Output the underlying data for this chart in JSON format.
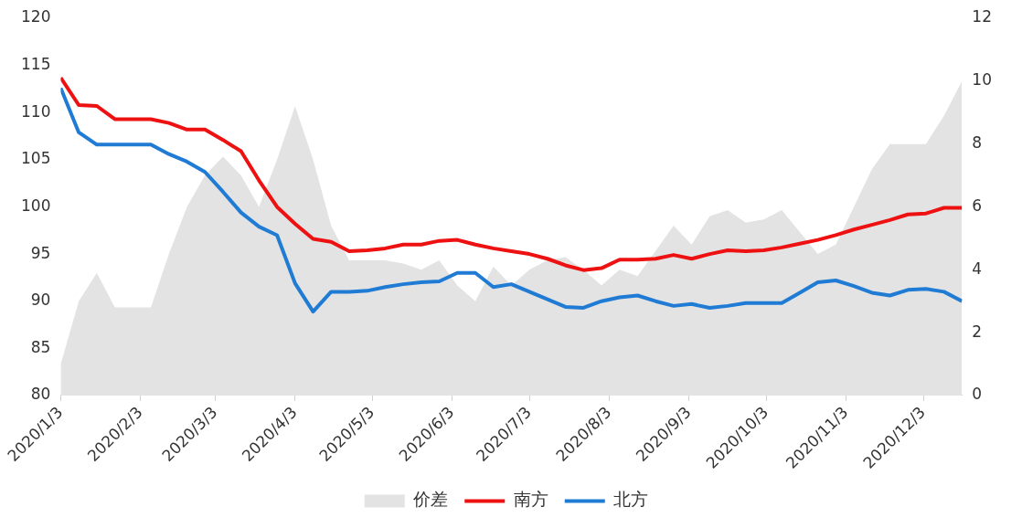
{
  "chart_data": {
    "type": "line",
    "x": [
      "2020-01-03",
      "2020-01-10",
      "2020-01-17",
      "2020-01-24",
      "2020-01-31",
      "2020-02-07",
      "2020-02-14",
      "2020-02-21",
      "2020-02-28",
      "2020-03-06",
      "2020-03-13",
      "2020-03-20",
      "2020-03-27",
      "2020-04-03",
      "2020-04-10",
      "2020-04-17",
      "2020-04-24",
      "2020-05-01",
      "2020-05-08",
      "2020-05-15",
      "2020-05-22",
      "2020-05-29",
      "2020-06-05",
      "2020-06-12",
      "2020-06-19",
      "2020-06-26",
      "2020-07-03",
      "2020-07-10",
      "2020-07-17",
      "2020-07-24",
      "2020-07-31",
      "2020-08-07",
      "2020-08-14",
      "2020-08-21",
      "2020-08-28",
      "2020-09-04",
      "2020-09-11",
      "2020-09-18",
      "2020-09-25",
      "2020-10-02",
      "2020-10-09",
      "2020-10-16",
      "2020-10-23",
      "2020-10-30",
      "2020-11-06",
      "2020-11-13",
      "2020-11-20",
      "2020-11-27",
      "2020-12-04",
      "2020-12-11",
      "2020-12-18"
    ],
    "series": [
      {
        "name": "价差",
        "type": "area",
        "axis": "y2",
        "color": "#e3e3e3",
        "values": [
          1.0,
          3.0,
          3.9,
          2.8,
          2.8,
          2.8,
          4.5,
          6.0,
          7.0,
          7.6,
          7.0,
          6.0,
          7.5,
          9.2,
          7.5,
          5.4,
          4.3,
          4.3,
          4.3,
          4.2,
          4.0,
          4.3,
          3.5,
          3.0,
          4.1,
          3.5,
          4.0,
          4.3,
          4.4,
          4.0,
          3.5,
          4.0,
          3.8,
          4.6,
          5.4,
          4.8,
          5.7,
          5.9,
          5.5,
          5.6,
          5.9,
          5.2,
          4.5,
          4.8,
          6.0,
          7.2,
          8.0,
          8.0,
          8.0,
          8.9,
          10.0
        ]
      },
      {
        "name": "南方",
        "color": "#ee1111",
        "values": [
          113.7,
          110.8,
          110.7,
          109.3,
          109.3,
          109.3,
          108.9,
          108.2,
          108.2,
          107.1,
          105.9,
          102.8,
          100.0,
          98.2,
          96.6,
          96.3,
          95.3,
          95.4,
          95.6,
          96.0,
          96.0,
          96.4,
          96.5,
          96.0,
          95.6,
          95.3,
          95.0,
          94.5,
          93.8,
          93.3,
          93.5,
          94.4,
          94.4,
          94.5,
          94.9,
          94.5,
          95.0,
          95.4,
          95.3,
          95.4,
          95.7,
          96.1,
          96.5,
          97.0,
          97.6,
          98.1,
          98.6,
          99.2,
          99.3,
          99.9,
          99.9
        ]
      },
      {
        "name": "北方",
        "color": "#1f7bd4",
        "values": [
          112.6,
          107.9,
          106.6,
          106.6,
          106.6,
          106.6,
          105.6,
          104.8,
          103.7,
          101.6,
          99.4,
          97.9,
          97.0,
          91.9,
          88.9,
          91.0,
          91.0,
          91.1,
          91.5,
          91.8,
          92.0,
          92.1,
          93.0,
          93.0,
          91.5,
          91.8,
          91.0,
          90.2,
          89.4,
          89.3,
          90.0,
          90.4,
          90.6,
          90.0,
          89.5,
          89.7,
          89.3,
          89.5,
          89.8,
          89.8,
          89.8,
          90.9,
          92.0,
          92.2,
          91.6,
          90.9,
          90.6,
          91.2,
          91.3,
          91.0,
          90.0
        ]
      }
    ],
    "xlim": [
      "2020-01-03",
      "2020-12-18"
    ],
    "xticks": [
      {
        "value": "2020-01-03",
        "label": "2020/1/3"
      },
      {
        "value": "2020-02-03",
        "label": "2020/2/3"
      },
      {
        "value": "2020-03-03",
        "label": "2020/3/3"
      },
      {
        "value": "2020-04-03",
        "label": "2020/4/3"
      },
      {
        "value": "2020-05-03",
        "label": "2020/5/3"
      },
      {
        "value": "2020-06-03",
        "label": "2020/6/3"
      },
      {
        "value": "2020-07-03",
        "label": "2020/7/3"
      },
      {
        "value": "2020-08-03",
        "label": "2020/8/3"
      },
      {
        "value": "2020-09-03",
        "label": "2020/9/3"
      },
      {
        "value": "2020-10-03",
        "label": "2020/10/3"
      },
      {
        "value": "2020-11-03",
        "label": "2020/11/3"
      },
      {
        "value": "2020-12-03",
        "label": "2020/12/3"
      }
    ],
    "ylim": [
      80,
      120
    ],
    "yticks": [
      80,
      85,
      90,
      95,
      100,
      105,
      110,
      115,
      120
    ],
    "y2lim": [
      0,
      12
    ],
    "y2ticks": [
      0,
      2,
      4,
      6,
      8,
      10,
      12
    ],
    "grid": false,
    "legend": "bottom",
    "marker": "none",
    "line_style": "solid"
  }
}
